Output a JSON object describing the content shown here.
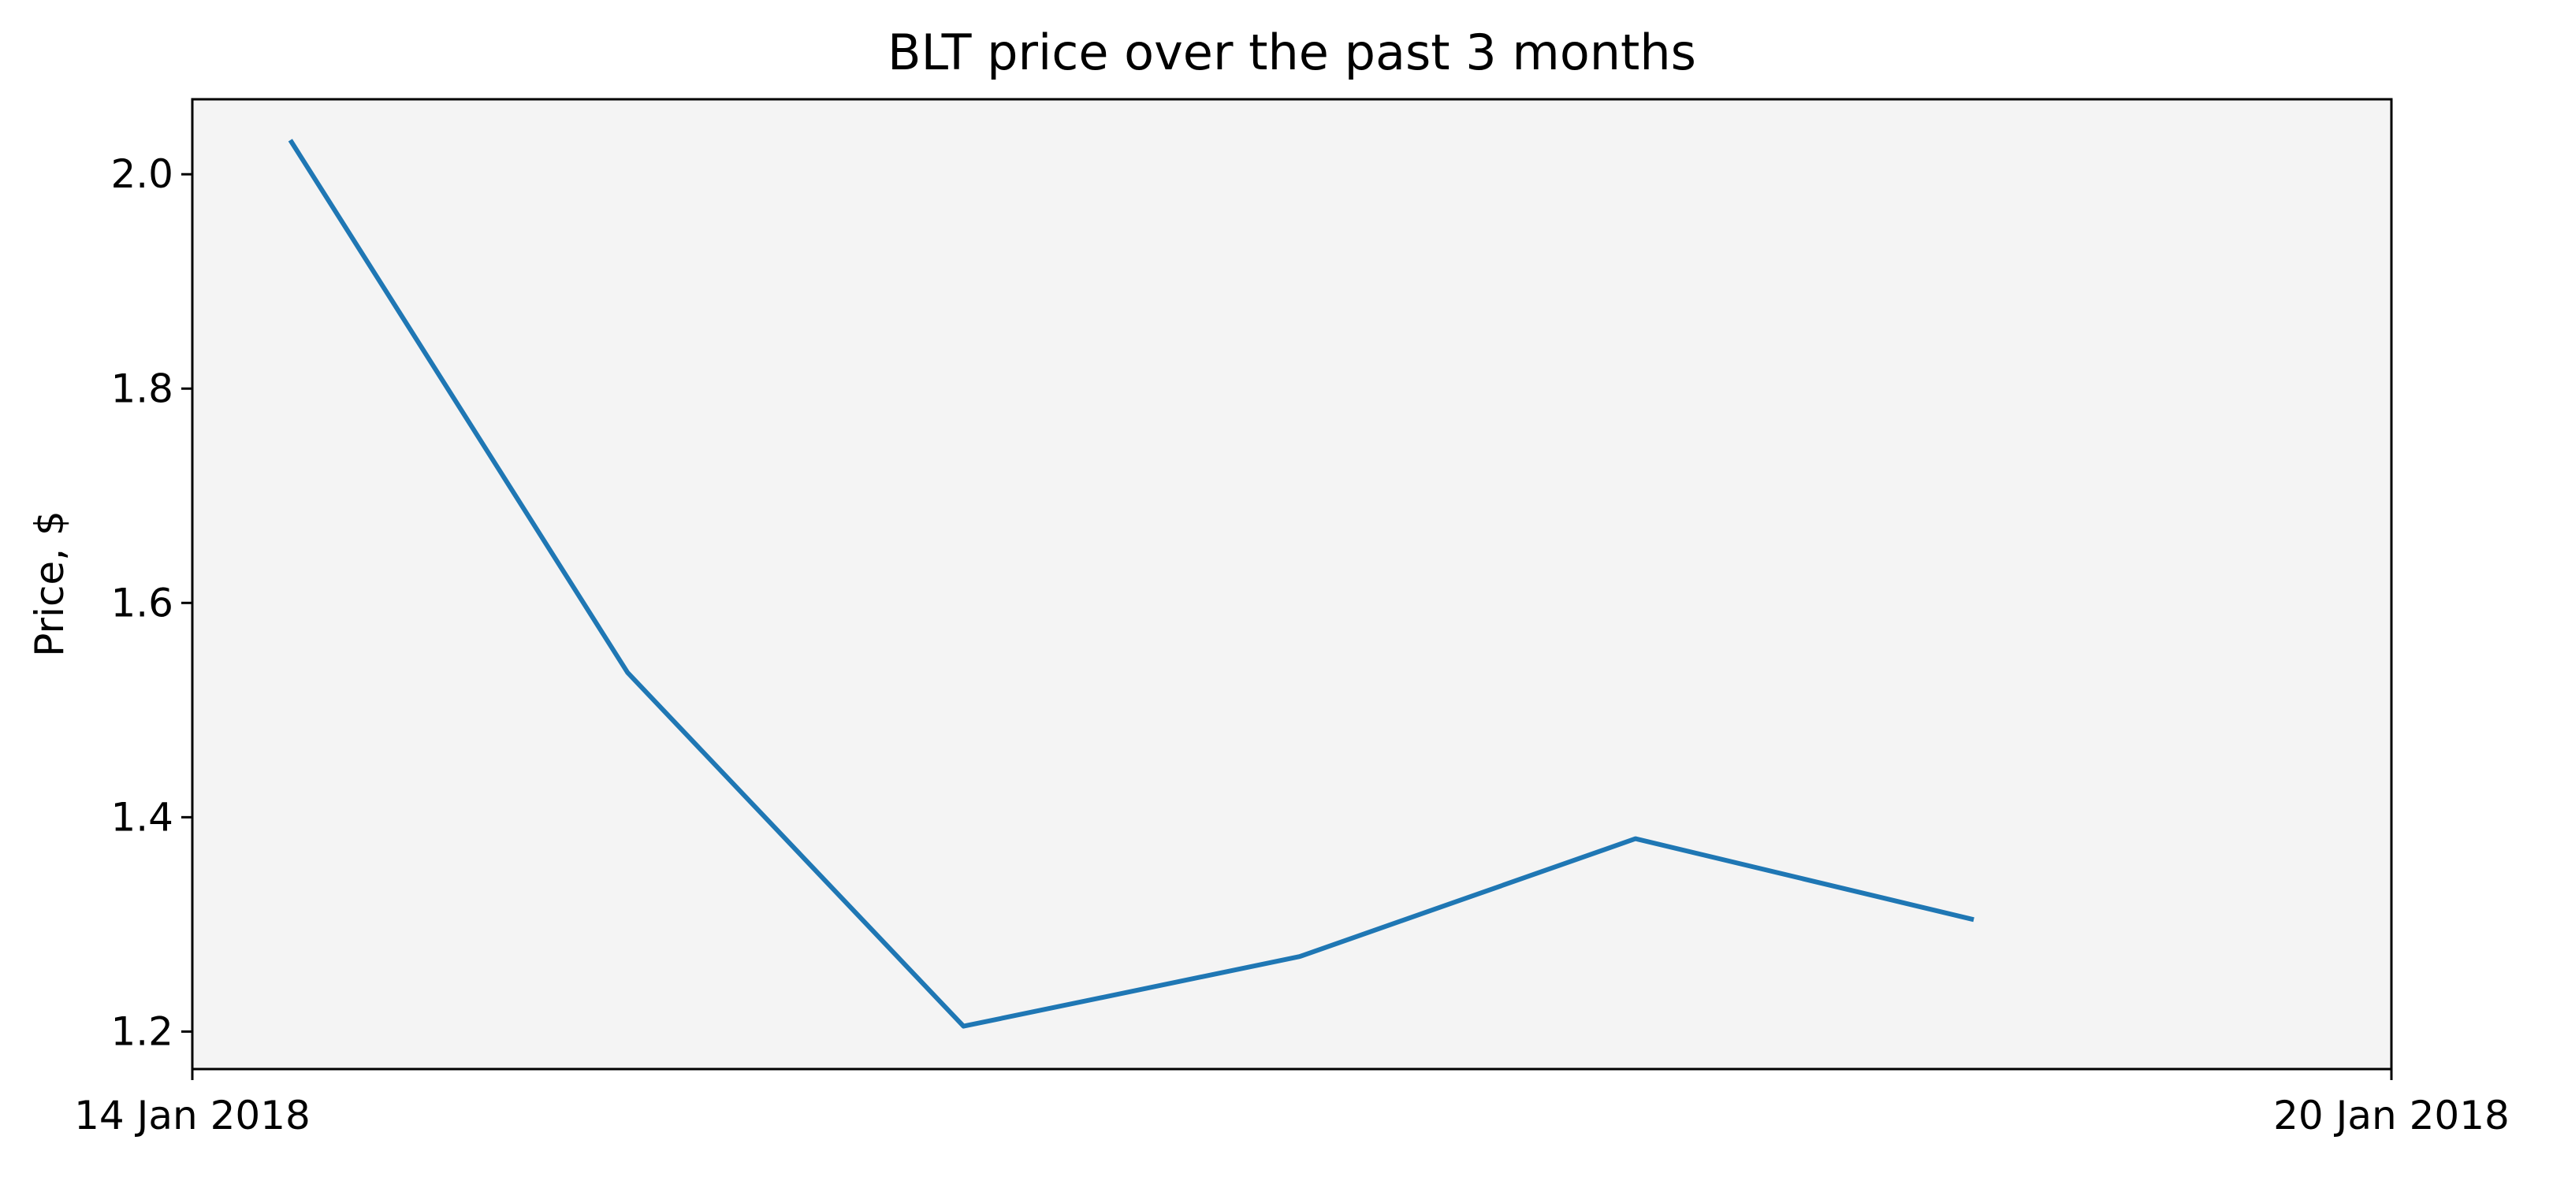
{
  "chart_data": {
    "type": "line",
    "title": "BLT price over the past 3 months",
    "xlabel": "",
    "ylabel": "Price, $",
    "x_tick_labels": [
      "14 Jan 2018",
      "20 Jan 2018"
    ],
    "x_tick_values": [
      "2018-01-14",
      "2018-01-20"
    ],
    "xlim": [
      "2018-01-14",
      "2018-01-20"
    ],
    "y_ticks": [
      1.2,
      1.4,
      1.6,
      1.8,
      2.0
    ],
    "y_tick_labels": [
      "1.2",
      "1.4",
      "1.6",
      "1.8",
      "2.0"
    ],
    "ylim": [
      1.165,
      2.07
    ],
    "grid": false,
    "legend": "none",
    "x": [
      "2018-01-14 06:30",
      "2018-01-15 04:30",
      "2018-01-16 02:30",
      "2018-01-17 00:30",
      "2018-01-17 22:30",
      "2018-01-18 20:30"
    ],
    "series": [
      {
        "values": [
          2.03,
          1.535,
          1.205,
          1.27,
          1.38,
          1.305
        ],
        "color": "#1f77b4"
      }
    ],
    "colors": {
      "plot_background": "#f4f4f4",
      "line": "#1f77b4",
      "axes": "#000000"
    }
  }
}
